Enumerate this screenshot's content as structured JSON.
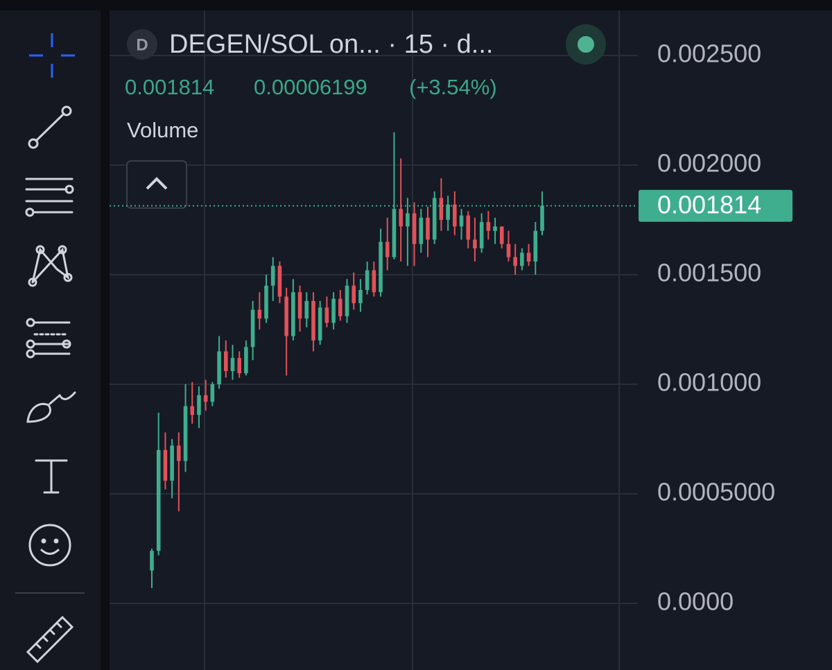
{
  "header": {
    "badge": "D",
    "title": "DEGEN/SOL on... · 15 · d...",
    "price": "0.001814",
    "change": "0.00006199",
    "change_pct": "(+3.54%)",
    "indicator": "Volume"
  },
  "chart_data": {
    "type": "candlestick",
    "up_color": "#3fae8e",
    "down_color": "#e0525a",
    "ylim": [
      -0.0003,
      0.0027
    ],
    "yticks": [
      {
        "value": 0.0025,
        "label": "0.002500"
      },
      {
        "value": 0.002,
        "label": "0.002000"
      },
      {
        "value": 0.0015,
        "label": "0.001500"
      },
      {
        "value": 0.001,
        "label": "0.001000"
      },
      {
        "value": 0.0005,
        "label": "0.0005000"
      },
      {
        "value": 0,
        "label": "0.0000"
      }
    ],
    "grid": true,
    "last_price": 0.001814,
    "open": [
      0.00015,
      0.00024,
      0.0007,
      0.00056,
      0.00072,
      0.00065,
      0.0009,
      0.00086,
      0.00095,
      0.00092,
      0.001,
      0.00115,
      0.00106,
      0.00112,
      0.00105,
      0.00117,
      0.00134,
      0.0013,
      0.00145,
      0.00154,
      0.0014,
      0.00122,
      0.00142,
      0.0013,
      0.00138,
      0.0012,
      0.00135,
      0.00128,
      0.00139,
      0.00131,
      0.00145,
      0.00137,
      0.00143,
      0.00152,
      0.00142,
      0.00165,
      0.00158,
      0.0018,
      0.00172,
      0.00178,
      0.00164,
      0.00176,
      0.00166,
      0.00185,
      0.00175,
      0.00182,
      0.00172,
      0.00177,
      0.00166,
      0.00162,
      0.00174,
      0.0017,
      0.00172,
      0.00164,
      0.00158,
      0.00154,
      0.0016,
      0.00156,
      0.0017
    ],
    "high": [
      0.00025,
      0.00087,
      0.00078,
      0.00075,
      0.00078,
      0.001,
      0.00101,
      0.00099,
      0.00102,
      0.00101,
      0.00122,
      0.0012,
      0.00118,
      0.00115,
      0.0012,
      0.00138,
      0.00142,
      0.0015,
      0.00158,
      0.00156,
      0.00144,
      0.00148,
      0.00145,
      0.00142,
      0.00142,
      0.00138,
      0.0014,
      0.00142,
      0.00143,
      0.00148,
      0.00151,
      0.00148,
      0.00156,
      0.00156,
      0.00171,
      0.00176,
      0.00215,
      0.00203,
      0.00185,
      0.00183,
      0.0018,
      0.00181,
      0.00188,
      0.00194,
      0.00186,
      0.00188,
      0.0018,
      0.00179,
      0.00176,
      0.00178,
      0.00179,
      0.00176,
      0.00172,
      0.0017,
      0.00164,
      0.00162,
      0.00164,
      0.00174,
      0.00188
    ],
    "low": [
      7e-05,
      0.00022,
      0.00052,
      0.00048,
      0.00042,
      0.0006,
      0.00082,
      0.0008,
      0.00088,
      0.0009,
      0.00098,
      0.00103,
      0.00102,
      0.00103,
      0.00104,
      0.00111,
      0.00125,
      0.00128,
      0.00138,
      0.00137,
      0.00104,
      0.0012,
      0.00124,
      0.00126,
      0.00115,
      0.00118,
      0.00126,
      0.00125,
      0.00129,
      0.00128,
      0.00134,
      0.00133,
      0.00141,
      0.0014,
      0.0014,
      0.00152,
      0.00157,
      0.00156,
      0.00154,
      0.00154,
      0.0016,
      0.00158,
      0.00164,
      0.0017,
      0.0017,
      0.00168,
      0.00166,
      0.00162,
      0.00156,
      0.0016,
      0.00166,
      0.00164,
      0.00162,
      0.00156,
      0.0015,
      0.00152,
      0.00154,
      0.0015,
      0.00168
    ],
    "close": [
      0.00024,
      0.0007,
      0.00056,
      0.00072,
      0.00065,
      0.0009,
      0.00086,
      0.00095,
      0.00092,
      0.001,
      0.00115,
      0.00106,
      0.00112,
      0.00105,
      0.00117,
      0.00134,
      0.0013,
      0.00145,
      0.00154,
      0.0014,
      0.00122,
      0.00142,
      0.0013,
      0.00138,
      0.0012,
      0.00135,
      0.00128,
      0.00139,
      0.00131,
      0.00145,
      0.00137,
      0.00143,
      0.00152,
      0.00142,
      0.00165,
      0.00158,
      0.0018,
      0.00172,
      0.00178,
      0.00164,
      0.00176,
      0.00166,
      0.00185,
      0.00175,
      0.00182,
      0.00172,
      0.00177,
      0.00166,
      0.00162,
      0.00174,
      0.0017,
      0.00172,
      0.00164,
      0.00158,
      0.00154,
      0.0016,
      0.00156,
      0.0017,
      0.001814
    ]
  }
}
